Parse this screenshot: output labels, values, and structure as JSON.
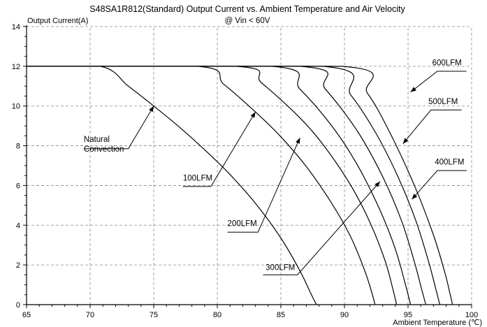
{
  "chart_data": {
    "type": "line",
    "title": "S48SA1R812(Standard) Output Current vs. Ambient Temperature and Air Velocity",
    "subtitle": "@ Vin < 60V",
    "xlabel": "Ambient Temperature (℃)",
    "ylabel": "Output Current(A)",
    "xlim": [
      65,
      100
    ],
    "ylim": [
      0,
      14
    ],
    "x_ticks": [
      65,
      70,
      75,
      80,
      85,
      90,
      95,
      100
    ],
    "y_ticks": [
      0,
      2,
      4,
      6,
      8,
      10,
      12,
      14
    ],
    "grid": true,
    "series": [
      {
        "name": "Natural Convection",
        "x": [
          65,
          70.8,
          73,
          75,
          77,
          79,
          81,
          83,
          85,
          86.5,
          87.4,
          87.8
        ],
        "y": [
          12,
          12,
          11,
          10,
          8.95,
          7.8,
          6.55,
          5.1,
          3.35,
          1.7,
          0.5,
          0
        ]
      },
      {
        "name": "100LFM",
        "x": [
          65,
          78.5,
          80.5,
          83,
          85,
          87,
          89,
          90.5,
          91.6,
          92.2,
          92.4
        ],
        "y": [
          12,
          12,
          11.1,
          9.7,
          8.45,
          6.95,
          5.1,
          3.4,
          1.7,
          0.5,
          0
        ]
      },
      {
        "name": "200LFM",
        "x": [
          65,
          81.5,
          83.5,
          86.5,
          88.5,
          90.5,
          92,
          93.2,
          93.8,
          94.1
        ],
        "y": [
          12,
          12,
          11.15,
          9.4,
          7.9,
          6.0,
          4.15,
          2.2,
          0.8,
          0
        ]
      },
      {
        "name": "300LFM",
        "x": [
          65,
          84.3,
          86.5,
          89,
          91,
          92.8,
          94,
          94.8,
          95.2
        ],
        "y": [
          12,
          12,
          10.85,
          9.0,
          7.05,
          4.75,
          2.8,
          1.0,
          0
        ]
      },
      {
        "name": "400LFM",
        "x": [
          65,
          86.5,
          88.5,
          91,
          93,
          94.5,
          95.5,
          96.1,
          96.4
        ],
        "y": [
          12,
          12,
          10.85,
          8.75,
          6.45,
          4.2,
          2.15,
          0.7,
          0
        ]
      },
      {
        "name": "500LFM",
        "x": [
          65,
          88.3,
          90.5,
          92.5,
          94.2,
          95.6,
          96.6,
          97.2,
          97.5
        ],
        "y": [
          12,
          12,
          10.55,
          8.6,
          6.45,
          4.25,
          2.2,
          0.75,
          0
        ]
      },
      {
        "name": "600LFM",
        "x": [
          65,
          89.8,
          91.8,
          93.5,
          95.5,
          97,
          97.9,
          98.3,
          98.5
        ],
        "y": [
          12,
          12,
          10.65,
          8.75,
          6.0,
          3.5,
          1.6,
          0.55,
          0
        ]
      }
    ],
    "annotations": [
      {
        "text": [
          "Natural",
          "Convection"
        ],
        "target": [
          75,
          10
        ],
        "label_at": [
          69.5,
          8.2
        ],
        "line": [
          [
            69.5,
            7.85
          ],
          [
            73,
            7.85
          ],
          [
            75,
            10
          ]
        ]
      },
      {
        "text": [
          "100LFM"
        ],
        "target": [
          83,
          9.7
        ],
        "label_at": [
          77.3,
          6.25
        ],
        "line": [
          [
            77.3,
            5.95
          ],
          [
            79.5,
            5.95
          ],
          [
            83,
            9.7
          ]
        ]
      },
      {
        "text": [
          "200LFM"
        ],
        "target": [
          86.5,
          8.4
        ],
        "label_at": [
          80.8,
          3.95
        ],
        "line": [
          [
            80.8,
            3.65
          ],
          [
            83.2,
            3.65
          ],
          [
            86.5,
            8.4
          ]
        ]
      },
      {
        "text": [
          "300LFM"
        ],
        "target": [
          92.8,
          6.2
        ],
        "label_at": [
          83.8,
          1.75
        ],
        "line": [
          [
            83.6,
            1.5
          ],
          [
            86.3,
            1.5
          ],
          [
            92.8,
            6.2
          ]
        ]
      },
      {
        "text": [
          "400LFM"
        ],
        "target": [
          95.3,
          5.3
        ],
        "label_at": [
          97.1,
          7.05
        ],
        "line": [
          [
            99.6,
            6.75
          ],
          [
            97.3,
            6.75
          ],
          [
            95.3,
            5.3
          ]
        ]
      },
      {
        "text": [
          "500LFM"
        ],
        "target": [
          94.6,
          8.1
        ],
        "label_at": [
          96.6,
          10.1
        ],
        "line": [
          [
            99.2,
            9.8
          ],
          [
            96.8,
            9.8
          ],
          [
            94.6,
            8.1
          ]
        ]
      },
      {
        "text": [
          "600LFM"
        ],
        "target": [
          95.2,
          10.7
        ],
        "label_at": [
          96.9,
          12.05
        ],
        "line": [
          [
            99.6,
            11.75
          ],
          [
            97.3,
            11.75
          ],
          [
            95.2,
            10.7
          ]
        ]
      }
    ]
  }
}
